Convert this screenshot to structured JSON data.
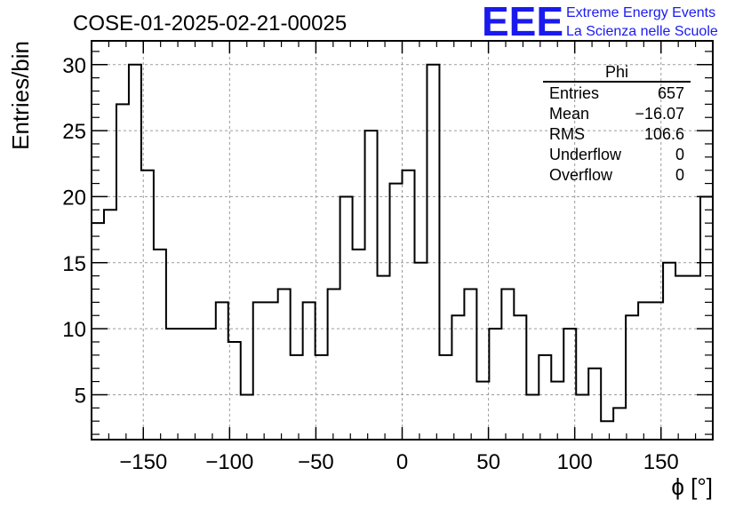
{
  "chart_data": {
    "type": "histogram",
    "title": "COSE-01-2025-02-21-00025",
    "xlabel": "ϕ [°]",
    "ylabel": "Entries/bin",
    "xlim": [
      -180,
      180
    ],
    "ylim": [
      1.6,
      31.8
    ],
    "xticks": [
      -150,
      -100,
      -50,
      0,
      50,
      100,
      150
    ],
    "xtick_labels": [
      "−150",
      "−100",
      "−50",
      "0",
      "50",
      "100",
      "150"
    ],
    "yticks": [
      5,
      10,
      15,
      20,
      25,
      30
    ],
    "ytick_labels": [
      "5",
      "10",
      "15",
      "20",
      "25",
      "30"
    ],
    "grid": true,
    "bin_width": 7.2,
    "values": [
      18,
      19,
      27,
      30,
      22,
      16,
      10,
      10,
      10,
      10,
      12,
      9,
      5,
      12,
      12,
      13,
      8,
      12,
      8,
      13,
      20,
      16,
      25,
      14,
      21,
      22,
      15,
      30,
      8,
      11,
      13,
      6,
      10,
      13,
      11,
      5,
      8,
      6,
      10,
      5,
      7,
      3,
      4,
      11,
      12,
      12,
      15,
      14,
      14,
      20
    ],
    "stats": {
      "name": "Phi",
      "rows": [
        {
          "label": "Entries",
          "value": "657"
        },
        {
          "label": "Mean",
          "value": "−16.07"
        },
        {
          "label": "RMS",
          "value": "106.6"
        },
        {
          "label": "Underflow",
          "value": "0"
        },
        {
          "label": "Overflow",
          "value": "0"
        }
      ]
    }
  },
  "logo": {
    "mark": "EEE",
    "line1": "Extreme Energy Events",
    "line2": "La Scienza nelle Scuole",
    "color": "#1a1aee"
  }
}
